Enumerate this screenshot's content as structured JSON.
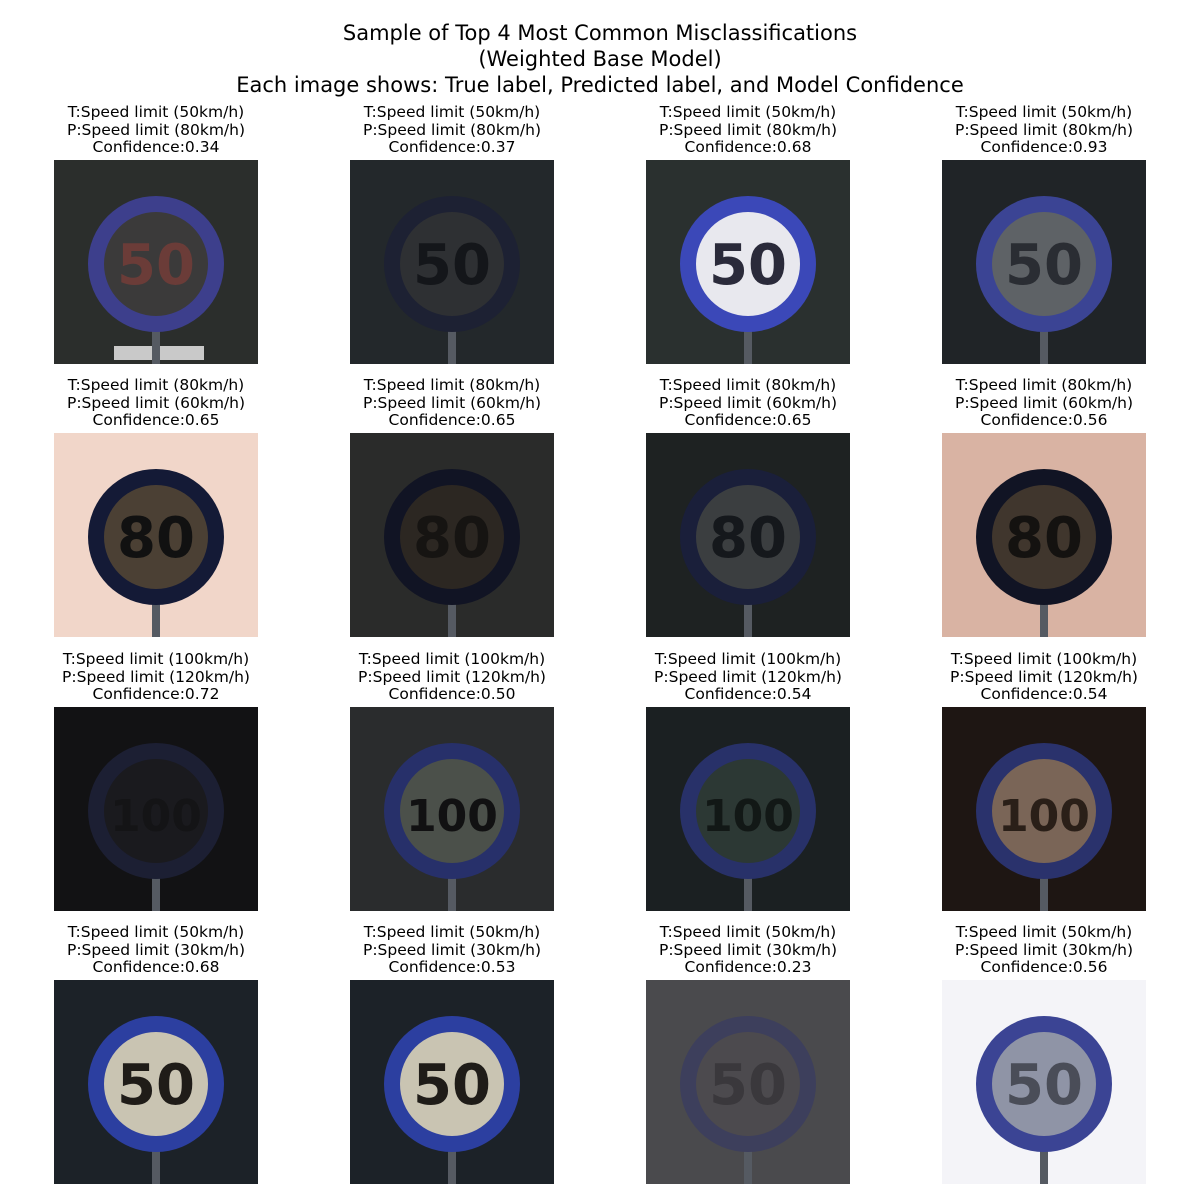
{
  "figure": {
    "title_lines": [
      "Sample of Top 4 Most Common Misclassifications",
      "(Weighted Base Model)",
      "Each image shows: True label, Predicted label, and Model Confidence"
    ],
    "rows": [
      {
        "cells": [
          {
            "true_label": "T:Speed limit (50km/h)",
            "pred_label": "P:Speed limit (80km/h)",
            "confidence": "Confidence:0.34",
            "digits": "50",
            "bg": "#2b2e2c",
            "face": "#3b3a3a",
            "ring": "#3d3f8c",
            "text_color": "#6b3c38",
            "stripe": "#c9c9c9"
          },
          {
            "true_label": "T:Speed limit (50km/h)",
            "pred_label": "P:Speed limit (80km/h)",
            "confidence": "Confidence:0.37",
            "digits": "50",
            "bg": "#23282b",
            "face": "#2e3033",
            "ring": "#1d2133",
            "text_color": "#14161a",
            "stripe": ""
          },
          {
            "true_label": "T:Speed limit (50km/h)",
            "pred_label": "P:Speed limit (80km/h)",
            "confidence": "Confidence:0.68",
            "digits": "50",
            "bg": "#2a302f",
            "face": "#e8e8ee",
            "ring": "#3b48b8",
            "text_color": "#2a2a3a",
            "stripe": ""
          },
          {
            "true_label": "T:Speed limit (50km/h)",
            "pred_label": "P:Speed limit (80km/h)",
            "confidence": "Confidence:0.93",
            "digits": "50",
            "bg": "#202427",
            "face": "#5e6266",
            "ring": "#3b4494",
            "text_color": "#2a2d33",
            "stripe": ""
          }
        ]
      },
      {
        "cells": [
          {
            "true_label": "T:Speed limit (80km/h)",
            "pred_label": "P:Speed limit (60km/h)",
            "confidence": "Confidence:0.65",
            "digits": "80",
            "bg": "#f1d6c9",
            "face": "#4b4034",
            "ring": "#141a36",
            "text_color": "#111111",
            "stripe": ""
          },
          {
            "true_label": "T:Speed limit (80km/h)",
            "pred_label": "P:Speed limit (60km/h)",
            "confidence": "Confidence:0.65",
            "digits": "80",
            "bg": "#2a2b2a",
            "face": "#2c2722",
            "ring": "#111424",
            "text_color": "#161412",
            "stripe": ""
          },
          {
            "true_label": "T:Speed limit (80km/h)",
            "pred_label": "P:Speed limit (60km/h)",
            "confidence": "Confidence:0.65",
            "digits": "80",
            "bg": "#1e2222",
            "face": "#3b3e40",
            "ring": "#1a1f3a",
            "text_color": "#15181c",
            "stripe": ""
          },
          {
            "true_label": "T:Speed limit (80km/h)",
            "pred_label": "P:Speed limit (60km/h)",
            "confidence": "Confidence:0.56",
            "digits": "80",
            "bg": "#d9b3a3",
            "face": "#40362d",
            "ring": "#111424",
            "text_color": "#141210",
            "stripe": ""
          }
        ]
      },
      {
        "cells": [
          {
            "true_label": "T:Speed limit (100km/h)",
            "pred_label": "P:Speed limit (120km/h)",
            "confidence": "Confidence:0.72",
            "digits": "100",
            "bg": "#121214",
            "face": "#1a1a1e",
            "ring": "#1c1f33",
            "text_color": "#141416",
            "stripe": ""
          },
          {
            "true_label": "T:Speed limit (100km/h)",
            "pred_label": "P:Speed limit (120km/h)",
            "confidence": "Confidence:0.50",
            "digits": "100",
            "bg": "#2a2c2d",
            "face": "#4b504a",
            "ring": "#27306a",
            "text_color": "#111112",
            "stripe": ""
          },
          {
            "true_label": "T:Speed limit (100km/h)",
            "pred_label": "P:Speed limit (120km/h)",
            "confidence": "Confidence:0.54",
            "digits": "100",
            "bg": "#1b2022",
            "face": "#2c3834",
            "ring": "#283169",
            "text_color": "#121816",
            "stripe": ""
          },
          {
            "true_label": "T:Speed limit (100km/h)",
            "pred_label": "P:Speed limit (120km/h)",
            "confidence": "Confidence:0.54",
            "digits": "100",
            "bg": "#1e1613",
            "face": "#7a6557",
            "ring": "#2a326c",
            "text_color": "#2a1f18",
            "stripe": ""
          }
        ]
      },
      {
        "cells": [
          {
            "true_label": "T:Speed limit (50km/h)",
            "pred_label": "P:Speed limit (30km/h)",
            "confidence": "Confidence:0.68",
            "digits": "50",
            "bg": "#1c2228",
            "face": "#c9c4b2",
            "ring": "#2c3fa0",
            "text_color": "#1f1c18",
            "stripe": ""
          },
          {
            "true_label": "T:Speed limit (50km/h)",
            "pred_label": "P:Speed limit (30km/h)",
            "confidence": "Confidence:0.53",
            "digits": "50",
            "bg": "#1c2228",
            "face": "#c9c4b2",
            "ring": "#2c3fa0",
            "text_color": "#1f1c18",
            "stripe": ""
          },
          {
            "true_label": "T:Speed limit (50km/h)",
            "pred_label": "P:Speed limit (30km/h)",
            "confidence": "Confidence:0.23",
            "digits": "50",
            "bg": "#4a4a4d",
            "face": "#4c4a4e",
            "ring": "#3d3f5c",
            "text_color": "#3a383c",
            "stripe": ""
          },
          {
            "true_label": "T:Speed limit (50km/h)",
            "pred_label": "P:Speed limit (30km/h)",
            "confidence": "Confidence:0.56",
            "digits": "50",
            "bg": "#f4f4f8",
            "face": "#8f94a6",
            "ring": "#3b4494",
            "text_color": "#4a4d58",
            "stripe": ""
          }
        ]
      }
    ]
  }
}
